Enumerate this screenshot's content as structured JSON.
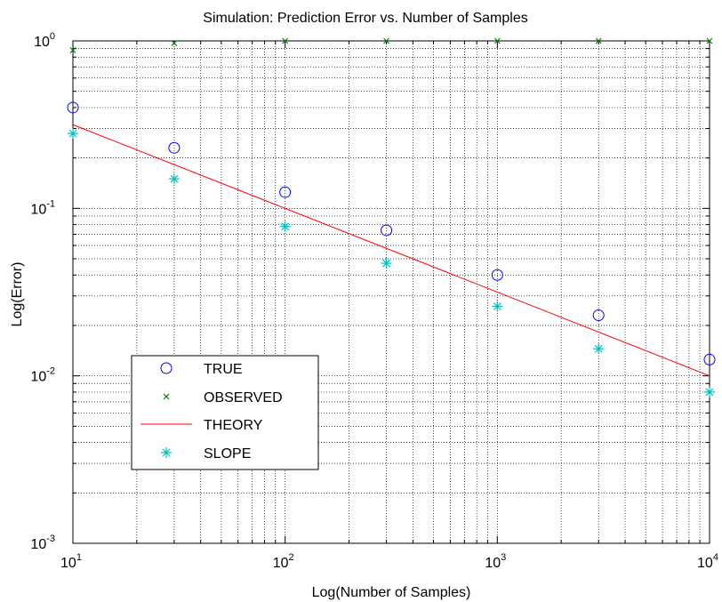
{
  "chart_data": {
    "type": "scatter",
    "title": "Simulation: Prediction Error vs. Number of Samples",
    "xlabel": "Log(Number of Samples)",
    "ylabel": "Log(Error)",
    "xscale": "log",
    "yscale": "log",
    "xlim": [
      10,
      10000
    ],
    "ylim": [
      0.001,
      1
    ],
    "grid": true,
    "minor_grid": true,
    "legend_position": "bottom-left",
    "x_ticks": [
      {
        "value": 10,
        "base": "10",
        "exp": "1"
      },
      {
        "value": 100,
        "base": "10",
        "exp": "2"
      },
      {
        "value": 1000,
        "base": "10",
        "exp": "3"
      },
      {
        "value": 10000,
        "base": "10",
        "exp": "4"
      }
    ],
    "y_ticks": [
      {
        "value": 0.001,
        "base": "10",
        "exp": "-3"
      },
      {
        "value": 0.01,
        "base": "10",
        "exp": "-2"
      },
      {
        "value": 0.1,
        "base": "10",
        "exp": "-1"
      },
      {
        "value": 1,
        "base": "10",
        "exp": "0"
      }
    ],
    "series": [
      {
        "name": "TRUE",
        "marker": "circle",
        "line": false,
        "color": "#0000ff",
        "x": [
          10,
          30,
          100,
          300,
          1000,
          3000,
          10000
        ],
        "y": [
          0.4,
          0.23,
          0.125,
          0.074,
          0.04,
          0.023,
          0.0125
        ]
      },
      {
        "name": "OBSERVED",
        "marker": "x",
        "line": false,
        "color": "#008000",
        "x": [
          10,
          30,
          100,
          300,
          1000,
          3000,
          10000
        ],
        "y": [
          0.88,
          0.97,
          1.0,
          1.0,
          1.0,
          1.0,
          1.0
        ]
      },
      {
        "name": "THEORY",
        "marker": "none",
        "line": true,
        "color": "#ff0000",
        "x": [
          10,
          10000
        ],
        "y": [
          0.316,
          0.01
        ]
      },
      {
        "name": "SLOPE",
        "marker": "star",
        "line": false,
        "color": "#00bfbf",
        "x": [
          10,
          30,
          100,
          300,
          1000,
          3000,
          10000
        ],
        "y": [
          0.28,
          0.15,
          0.078,
          0.047,
          0.026,
          0.0145,
          0.008
        ]
      }
    ]
  }
}
